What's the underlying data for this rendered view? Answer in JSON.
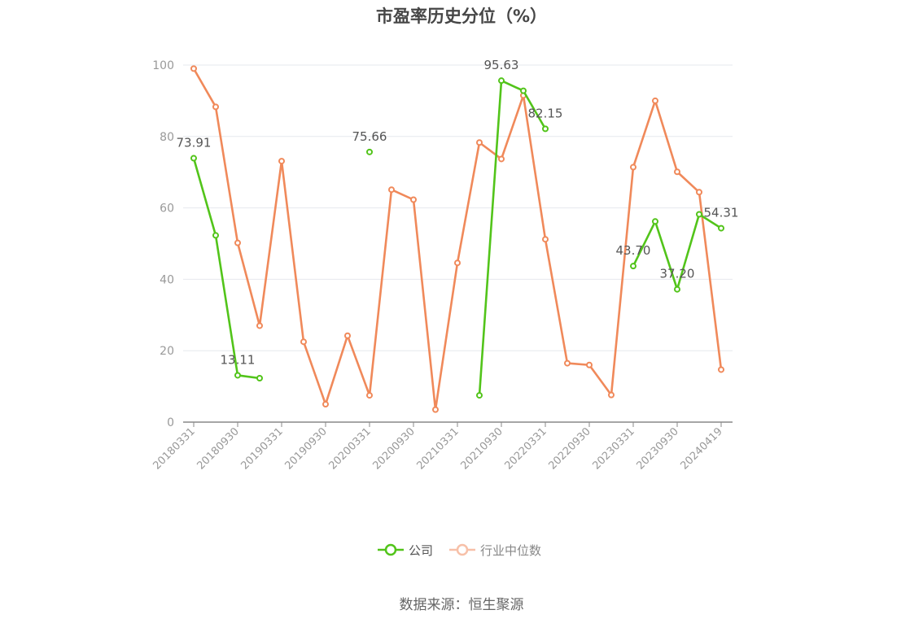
{
  "chart_data": {
    "type": "line",
    "title": "市盈率历史分位（%）",
    "ylim": [
      0,
      100
    ],
    "yticks": [
      0,
      20,
      40,
      60,
      80,
      100
    ],
    "x_tick_labels": [
      "20180331",
      "20180930",
      "20190331",
      "20190930",
      "20200331",
      "20200930",
      "20210331",
      "20210930",
      "20220331",
      "20220930",
      "20230331",
      "20230930",
      "20240419"
    ],
    "x": [
      "20180331",
      "20180630",
      "20180930",
      "20181231",
      "20190331",
      "20190630",
      "20190930",
      "20191231",
      "20200331",
      "20200630",
      "20200930",
      "20201231",
      "20210331",
      "20210630",
      "20210930",
      "20211231",
      "20220331",
      "20220630",
      "20220930",
      "20221231",
      "20230331",
      "20230630",
      "20230930",
      "20231231",
      "20240419"
    ],
    "grid": true,
    "legend_position": "bottom",
    "series": [
      {
        "name": "公司",
        "color": "#52c41a",
        "values": [
          73.91,
          52.3,
          13.11,
          12.3,
          null,
          null,
          null,
          null,
          75.66,
          null,
          null,
          null,
          null,
          7.5,
          95.63,
          92.8,
          82.15,
          null,
          null,
          null,
          43.7,
          56.2,
          37.2,
          58.2,
          54.31
        ],
        "labels": {
          "0": "73.91",
          "2": "13.11",
          "8": "75.66",
          "14": "95.63",
          "16": "82.15",
          "20": "43.70",
          "22": "37.20",
          "24": "54.31"
        }
      },
      {
        "name": "行业中位数",
        "color": "#f0895a",
        "values": [
          99.0,
          88.3,
          50.2,
          27.0,
          73.1,
          22.5,
          5.0,
          24.2,
          7.5,
          65.1,
          62.3,
          3.5,
          44.6,
          78.3,
          73.7,
          91.5,
          51.2,
          16.5,
          16.0,
          7.6,
          71.4,
          90.0,
          70.1,
          64.4,
          14.7
        ]
      }
    ]
  },
  "source": "数据来源：恒生聚源"
}
